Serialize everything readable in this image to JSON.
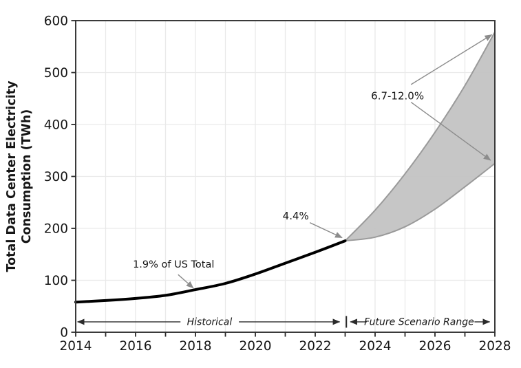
{
  "style": {
    "background": "#ffffff",
    "text_color": "#161616",
    "grid_color": "#e9e9e9",
    "spine_color": "#3a3a3a",
    "tick_color": "#2b2b2b",
    "historical_line_color": "#000000",
    "band_fill_color": "#c3c3c3",
    "band_edge_color": "#9a9a9a",
    "annotation_arrow_color": "#8c8c8c",
    "span_arrow_color": "#2b2b2b"
  },
  "chart_data": {
    "type": "line",
    "title": "",
    "xlabel": "",
    "ylabel_lines": [
      "Total Data Center Electricity",
      "Consumption (TWh)"
    ],
    "xlim": [
      2014,
      2028
    ],
    "ylim": [
      0,
      600
    ],
    "grid": "on",
    "legend": "none",
    "x_ticks_every_year": [
      2014,
      2015,
      2016,
      2017,
      2018,
      2019,
      2020,
      2021,
      2022,
      2023,
      2024,
      2025,
      2026,
      2027,
      2028
    ],
    "x_tick_labels": [
      "2014",
      "2016",
      "2018",
      "2020",
      "2022",
      "2024",
      "2026",
      "2028"
    ],
    "x_tick_label_years": [
      2014,
      2016,
      2018,
      2020,
      2022,
      2024,
      2026,
      2028
    ],
    "y_ticks": [
      0,
      100,
      200,
      300,
      400,
      500,
      600
    ],
    "y_tick_labels": [
      "0",
      "100",
      "200",
      "300",
      "400",
      "500",
      "600"
    ],
    "series": [
      {
        "name": "historical",
        "x": [
          2014,
          2015,
          2016,
          2017,
          2018,
          2019,
          2020,
          2021,
          2022,
          2023
        ],
        "values": [
          58,
          61,
          65,
          71,
          82,
          94,
          112,
          133,
          154,
          176
        ]
      },
      {
        "name": "future-upper-bound",
        "x": [
          2023,
          2024,
          2025,
          2026,
          2027,
          2028
        ],
        "values": [
          176,
          235,
          305,
          385,
          475,
          578
        ]
      },
      {
        "name": "future-lower-bound",
        "x": [
          2023,
          2024,
          2025,
          2026,
          2027,
          2028
        ],
        "values": [
          176,
          183,
          203,
          237,
          280,
          325
        ]
      }
    ],
    "band_between": [
      "future-upper-bound",
      "future-lower-bound"
    ],
    "annotations": [
      {
        "text": "1.9% of US Total",
        "size_class": "annot-small",
        "text_year": 2017.27,
        "text_value": 131,
        "arrows": [
          {
            "from": [
              2017.42,
              111
            ],
            "to": [
              2017.93,
              85
            ]
          }
        ]
      },
      {
        "text": "4.4%",
        "size_class": "annot",
        "text_year": 2021.35,
        "text_value": 224,
        "arrows": [
          {
            "from": [
              2021.82,
              211
            ],
            "to": [
              2022.9,
              182
            ]
          }
        ]
      },
      {
        "text": "6.7-12.0%",
        "size_class": "annot",
        "text_year": 2024.75,
        "text_value": 455,
        "arrows": [
          {
            "from": [
              2025.2,
              477
            ],
            "to": [
              2027.9,
              573
            ]
          },
          {
            "from": [
              2025.2,
              443
            ],
            "to": [
              2027.86,
              331
            ]
          }
        ]
      }
    ],
    "span_annotations": [
      {
        "text": "Historical",
        "y_value": 20,
        "text_year": 2018.47,
        "left_arrow": {
          "tail": 2017.5,
          "head": 2014.06
        },
        "right_arrow": {
          "tail": 2019.45,
          "head": 2022.82
        },
        "divider_year": null
      },
      {
        "text": "Future Scenario Range",
        "y_value": 20,
        "text_year": 2025.47,
        "left_arrow": {
          "tail": 2023.72,
          "head": 2023.17
        },
        "right_arrow": {
          "tail": 2027.32,
          "head": 2027.83
        },
        "divider_year": 2023.04
      }
    ]
  }
}
